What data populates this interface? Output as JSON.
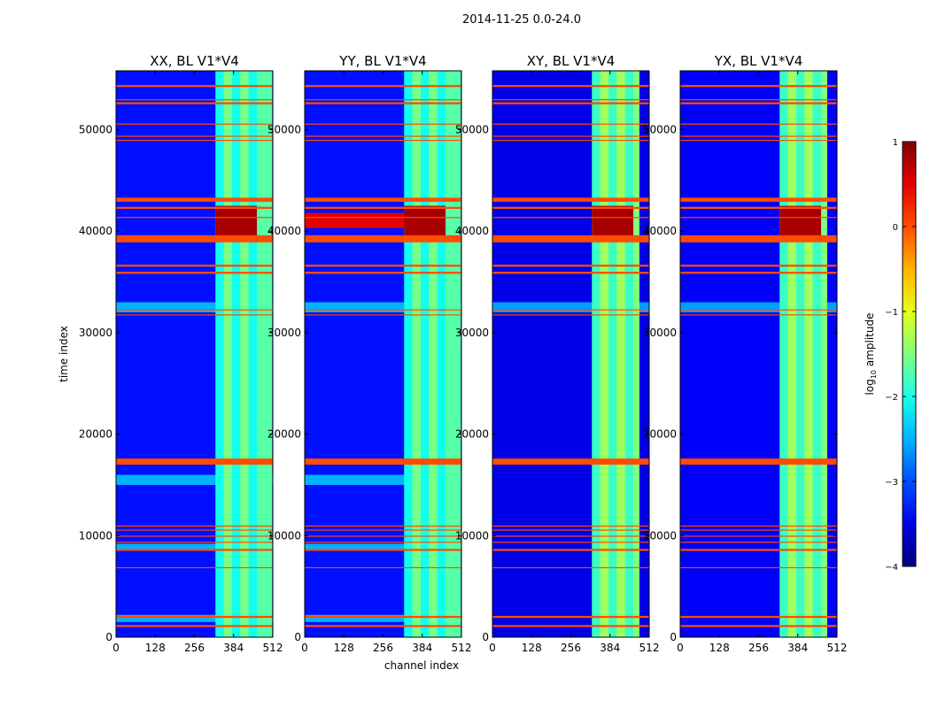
{
  "chart_data": {
    "type": "heatmap",
    "suptitle": "2014-11-25 0.0-24.0",
    "xlabel": "channel index",
    "ylabel": "time index",
    "xlim": [
      0,
      512
    ],
    "ylim": [
      0,
      55800
    ],
    "xticks": [
      0,
      128,
      256,
      384,
      512
    ],
    "yticks": [
      0,
      10000,
      20000,
      30000,
      40000,
      50000
    ],
    "colorbar": {
      "label": "log10 amplitude",
      "label_base": "log",
      "label_sub": "10",
      "label_rest": " amplitude",
      "range": [
        -4,
        1
      ],
      "ticks": [
        1,
        0,
        -1,
        -2,
        -3,
        -4
      ],
      "tick_labels": [
        "1",
        "0",
        "−1",
        "−2",
        "−3",
        "−4"
      ]
    },
    "panels": [
      {
        "title": "XX, BL V1*V4",
        "background_level": -3.3,
        "band_channels": [
          [
            325,
            510
          ]
        ],
        "band_level": -1.7,
        "strong_band_channels": [
          [
            325,
            460
          ]
        ],
        "bright_block_time": [
          39500,
          42500
        ],
        "bright_block_channels": [
          [
            325,
            460
          ]
        ],
        "bright_block_level": 0.8,
        "low_time_stripes": [
          [
            1500,
            2200
          ],
          [
            8500,
            9200
          ],
          [
            15000,
            16000
          ],
          [
            32000,
            33000
          ]
        ],
        "low_stripe_level": -2.5,
        "hot_streak": null
      },
      {
        "title": "YY, BL V1*V4",
        "background_level": -3.3,
        "band_channels": [
          [
            325,
            510
          ]
        ],
        "band_level": -1.7,
        "strong_band_channels": [
          [
            325,
            460
          ]
        ],
        "bright_block_time": [
          39500,
          42500
        ],
        "bright_block_channels": [
          [
            325,
            460
          ]
        ],
        "bright_block_level": 0.8,
        "low_time_stripes": [
          [
            1500,
            2200
          ],
          [
            8500,
            9200
          ],
          [
            15000,
            16000
          ],
          [
            32000,
            33000
          ]
        ],
        "low_stripe_level": -2.5,
        "hot_streak": {
          "time": [
            40300,
            41800
          ],
          "channels": [
            0,
            330
          ],
          "level": 0.5
        }
      },
      {
        "title": "XY, BL V1*V4",
        "background_level": -3.5,
        "band_channels": [
          [
            325,
            480
          ]
        ],
        "band_level": -1.5,
        "strong_band_channels": [
          [
            325,
            460
          ]
        ],
        "bright_block_time": [
          39500,
          42500
        ],
        "bright_block_channels": [
          [
            325,
            460
          ]
        ],
        "bright_block_level": 0.8,
        "low_time_stripes": [
          [
            32000,
            33000
          ]
        ],
        "low_stripe_level": -2.6,
        "hot_streak": null
      },
      {
        "title": "YX, BL V1*V4",
        "background_level": -3.4,
        "band_channels": [
          [
            325,
            480
          ]
        ],
        "band_level": -1.5,
        "strong_band_channels": [
          [
            325,
            460
          ]
        ],
        "bright_block_time": [
          39500,
          42500
        ],
        "bright_block_channels": [
          [
            325,
            460
          ]
        ],
        "bright_block_level": 0.8,
        "low_time_stripes": [
          [
            32000,
            33000
          ]
        ],
        "low_stripe_level": -2.6,
        "hot_streak": null
      }
    ],
    "flagged_time_ranges": [
      [
        1000,
        1200
      ],
      [
        1900,
        2100
      ],
      [
        6800,
        6900
      ],
      [
        8500,
        8700
      ],
      [
        9300,
        9400
      ],
      [
        9900,
        10000
      ],
      [
        10500,
        10600
      ],
      [
        10900,
        11000
      ],
      [
        17000,
        17600
      ],
      [
        31700,
        31800
      ],
      [
        32200,
        32300
      ],
      [
        35800,
        36000
      ],
      [
        36500,
        36700
      ],
      [
        38900,
        39600
      ],
      [
        41300,
        41400
      ],
      [
        42200,
        42400
      ],
      [
        42900,
        43300
      ],
      [
        48900,
        49000
      ],
      [
        49300,
        49400
      ],
      [
        50500,
        50600
      ],
      [
        52500,
        52700
      ],
      [
        52900,
        53000
      ],
      [
        54200,
        54400
      ]
    ],
    "flag_level": 0.0
  }
}
